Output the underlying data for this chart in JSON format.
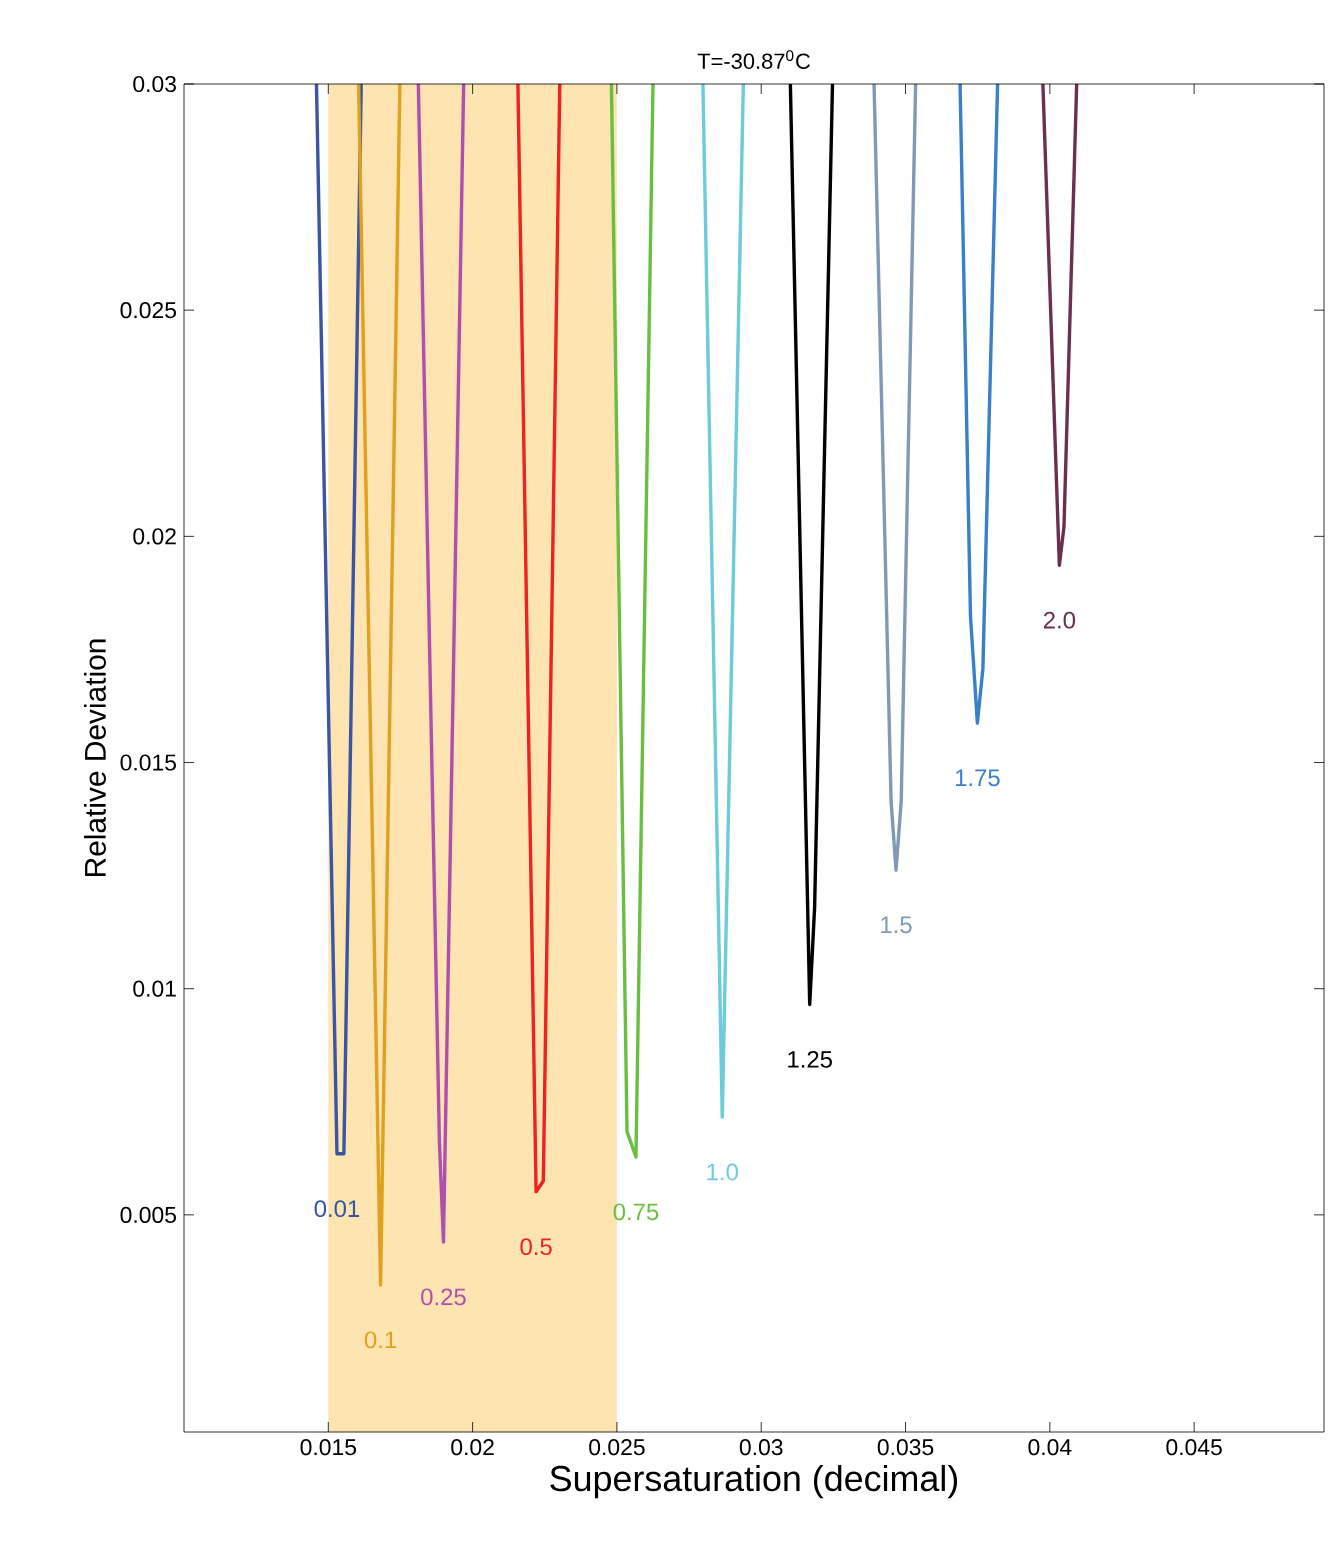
{
  "chart_data": {
    "type": "line",
    "title": "T=-30.87$^{0}$C",
    "xlabel": "Supersaturation (decimal)",
    "ylabel": "Relative Deviation",
    "xlim": [
      0.01,
      0.0495
    ],
    "ylim": [
      0.0002,
      0.03
    ],
    "xticks": [
      0.015,
      0.02,
      0.025,
      0.03,
      0.035,
      0.04,
      0.045
    ],
    "yticks": [
      0.005,
      0.01,
      0.015,
      0.02,
      0.025,
      0.03
    ],
    "marker": "none",
    "line_style": "solid",
    "bands": [
      {
        "axis": "x",
        "from": 0.015,
        "to": 0.025,
        "color": "#fde4b0"
      }
    ],
    "series": [
      {
        "name": "0.01",
        "color": "#3a55a4",
        "x": [
          0.01459,
          0.0153,
          0.01554,
          0.01614
        ],
        "values": [
          0.03,
          0.00635,
          0.00635,
          0.03
        ]
      },
      {
        "name": "0.1",
        "color": "#e0a020",
        "x": [
          0.01605,
          0.01681,
          0.01748
        ],
        "values": [
          0.03,
          0.00345,
          0.03
        ]
      },
      {
        "name": "0.25",
        "color": "#b04fb0",
        "x": [
          0.01812,
          0.01885,
          0.01899,
          0.01969
        ],
        "values": [
          0.03,
          0.0066,
          0.0044,
          0.03
        ]
      },
      {
        "name": "0.5",
        "color": "#ee2222",
        "x": [
          0.02157,
          0.0222,
          0.02245,
          0.02302
        ],
        "values": [
          0.03,
          0.00551,
          0.00575,
          0.03
        ]
      },
      {
        "name": "0.75",
        "color": "#6abf40",
        "x": [
          0.02481,
          0.02535,
          0.02566,
          0.02625
        ],
        "values": [
          0.03,
          0.00684,
          0.00628,
          0.03
        ]
      },
      {
        "name": "1.0",
        "color": "#6cccdc",
        "x": [
          0.02798,
          0.02865,
          0.02938
        ],
        "values": [
          0.03,
          0.00716,
          0.03
        ]
      },
      {
        "name": "1.25",
        "color": "#000000",
        "x": [
          0.03101,
          0.03168,
          0.03185,
          0.03247
        ],
        "values": [
          0.03,
          0.00965,
          0.0118,
          0.03
        ]
      },
      {
        "name": "1.5",
        "color": "#7f9ab5",
        "x": [
          0.03391,
          0.0345,
          0.03467,
          0.03485,
          0.03535
        ],
        "values": [
          0.03,
          0.01414,
          0.01262,
          0.01414,
          0.03
        ]
      },
      {
        "name": "1.75",
        "color": "#3a80c8",
        "x": [
          0.03689,
          0.03725,
          0.03749,
          0.03768,
          0.03819
        ],
        "values": [
          0.03,
          0.01824,
          0.01587,
          0.01707,
          0.03
        ]
      },
      {
        "name": "2.0",
        "color": "#6b3050",
        "x": [
          0.03976,
          0.04033,
          0.04049,
          0.04093
        ],
        "values": [
          0.03,
          0.01936,
          0.02021,
          0.03
        ]
      }
    ]
  }
}
